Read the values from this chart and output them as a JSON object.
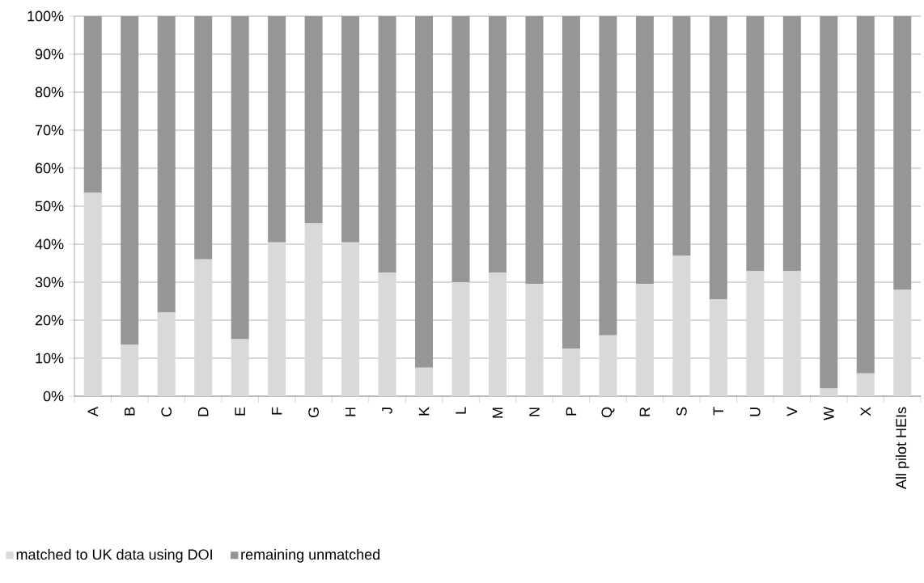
{
  "chart_data": {
    "type": "bar",
    "stacked": true,
    "categories": [
      "A",
      "B",
      "C",
      "D",
      "E",
      "F",
      "G",
      "H",
      "J",
      "K",
      "L",
      "M",
      "N",
      "P",
      "Q",
      "R",
      "S",
      "T",
      "U",
      "V",
      "W",
      "X",
      "All pilot HEIs"
    ],
    "series": [
      {
        "name": "matched to UK data using DOI",
        "color": "#d9d9d9",
        "values": [
          53.5,
          13.5,
          22,
          36,
          15,
          40.5,
          45.5,
          40.5,
          32.5,
          7.5,
          30,
          32.5,
          29.5,
          12.5,
          16,
          29.5,
          37,
          25.5,
          33,
          33,
          2,
          6,
          28
        ]
      },
      {
        "name": "remaining unmatched",
        "color": "#969696",
        "values": [
          46.5,
          86.5,
          78,
          64,
          85,
          59.5,
          54.5,
          59.5,
          67.5,
          92.5,
          70,
          67.5,
          70.5,
          87.5,
          84,
          70.5,
          63,
          74.5,
          67,
          67,
          98,
          94,
          72
        ]
      }
    ],
    "ylim": [
      0,
      100
    ],
    "yticks": [
      {
        "value": 0,
        "label": "0%"
      },
      {
        "value": 10,
        "label": "10%"
      },
      {
        "value": 20,
        "label": "20%"
      },
      {
        "value": 30,
        "label": "30%"
      },
      {
        "value": 40,
        "label": "40%"
      },
      {
        "value": 50,
        "label": "50%"
      },
      {
        "value": 60,
        "label": "60%"
      },
      {
        "value": 70,
        "label": "70%"
      },
      {
        "value": 80,
        "label": "80%"
      },
      {
        "value": 90,
        "label": "90%"
      },
      {
        "value": 100,
        "label": "100%"
      }
    ],
    "grid": "y",
    "legend": "bottom"
  }
}
